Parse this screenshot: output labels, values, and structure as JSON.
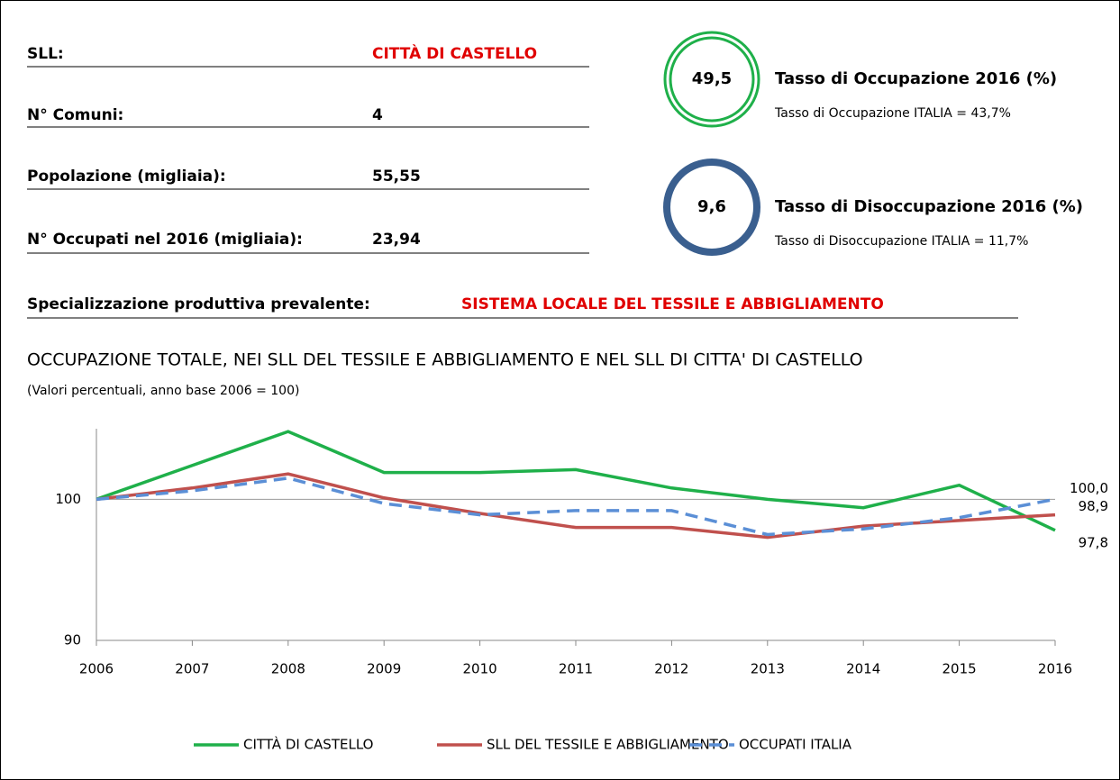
{
  "info": {
    "rows": [
      {
        "label": "SLL:",
        "value": "CITTÀ DI CASTELLO"
      },
      {
        "label": "N° Comuni:",
        "value": "4"
      },
      {
        "label": "Popolazione (migliaia):",
        "value": "55,55"
      },
      {
        "label": "N° Occupati nel 2016 (migliaia):",
        "value": "23,94"
      }
    ],
    "specialization": {
      "label": "Specializzazione produttiva prevalente:",
      "value": "SISTEMA LOCALE DEL TESSILE E ABBIGLIAMENTO"
    }
  },
  "indicators": [
    {
      "value": "49,5",
      "title": "Tasso di Occupazione 2016 (%)",
      "subtitle": "Tasso di Occupazione ITALIA = 43,7%",
      "color": "#1fb04a"
    },
    {
      "value": "9,6",
      "title": "Tasso di Disoccupazione 2016 (%)",
      "subtitle": "Tasso di Disoccupazione ITALIA = 11,7%",
      "color": "#3a5f8f"
    }
  ],
  "chart_data": {
    "type": "line",
    "title": "OCCUPAZIONE TOTALE, NEI SLL DEL TESSILE E ABBIGLIAMENTO E NEL SLL DI CITTA' DI CASTELLO",
    "subtitle": "(Valori percentuali, anno base 2006 = 100)",
    "categories": [
      "2006",
      "2007",
      "2008",
      "2009",
      "2010",
      "2011",
      "2012",
      "2013",
      "2014",
      "2015",
      "2016"
    ],
    "series": [
      {
        "name": "CITTÀ DI CASTELLO",
        "color": "#1fb04a",
        "dash": false,
        "values": [
          100,
          102.4,
          104.8,
          101.9,
          101.9,
          102.1,
          100.8,
          100.0,
          99.4,
          101.0,
          97.8
        ],
        "value_labels": [
          null,
          null,
          null,
          null,
          null,
          null,
          null,
          null,
          null,
          null,
          "97,8"
        ]
      },
      {
        "name": "SLL DEL TESSILE E ABBIGLIAMENTO",
        "color": "#c0504d",
        "dash": false,
        "values": [
          100,
          100.8,
          101.8,
          100.1,
          99.0,
          98.0,
          98.0,
          97.3,
          98.1,
          98.5,
          98.9
        ],
        "value_labels": [
          null,
          null,
          null,
          null,
          null,
          null,
          null,
          null,
          null,
          null,
          "98,9"
        ]
      },
      {
        "name": "OCCUPATI ITALIA",
        "color": "#5b8fd6",
        "dash": true,
        "values": [
          100,
          100.6,
          101.5,
          99.7,
          98.9,
          99.2,
          99.2,
          97.5,
          97.9,
          98.7,
          100.0
        ],
        "value_labels": [
          null,
          null,
          null,
          null,
          null,
          null,
          null,
          null,
          null,
          null,
          "100,0"
        ]
      }
    ],
    "ylim": [
      90,
      105
    ],
    "yticks": [
      90,
      100
    ],
    "grid": true
  }
}
